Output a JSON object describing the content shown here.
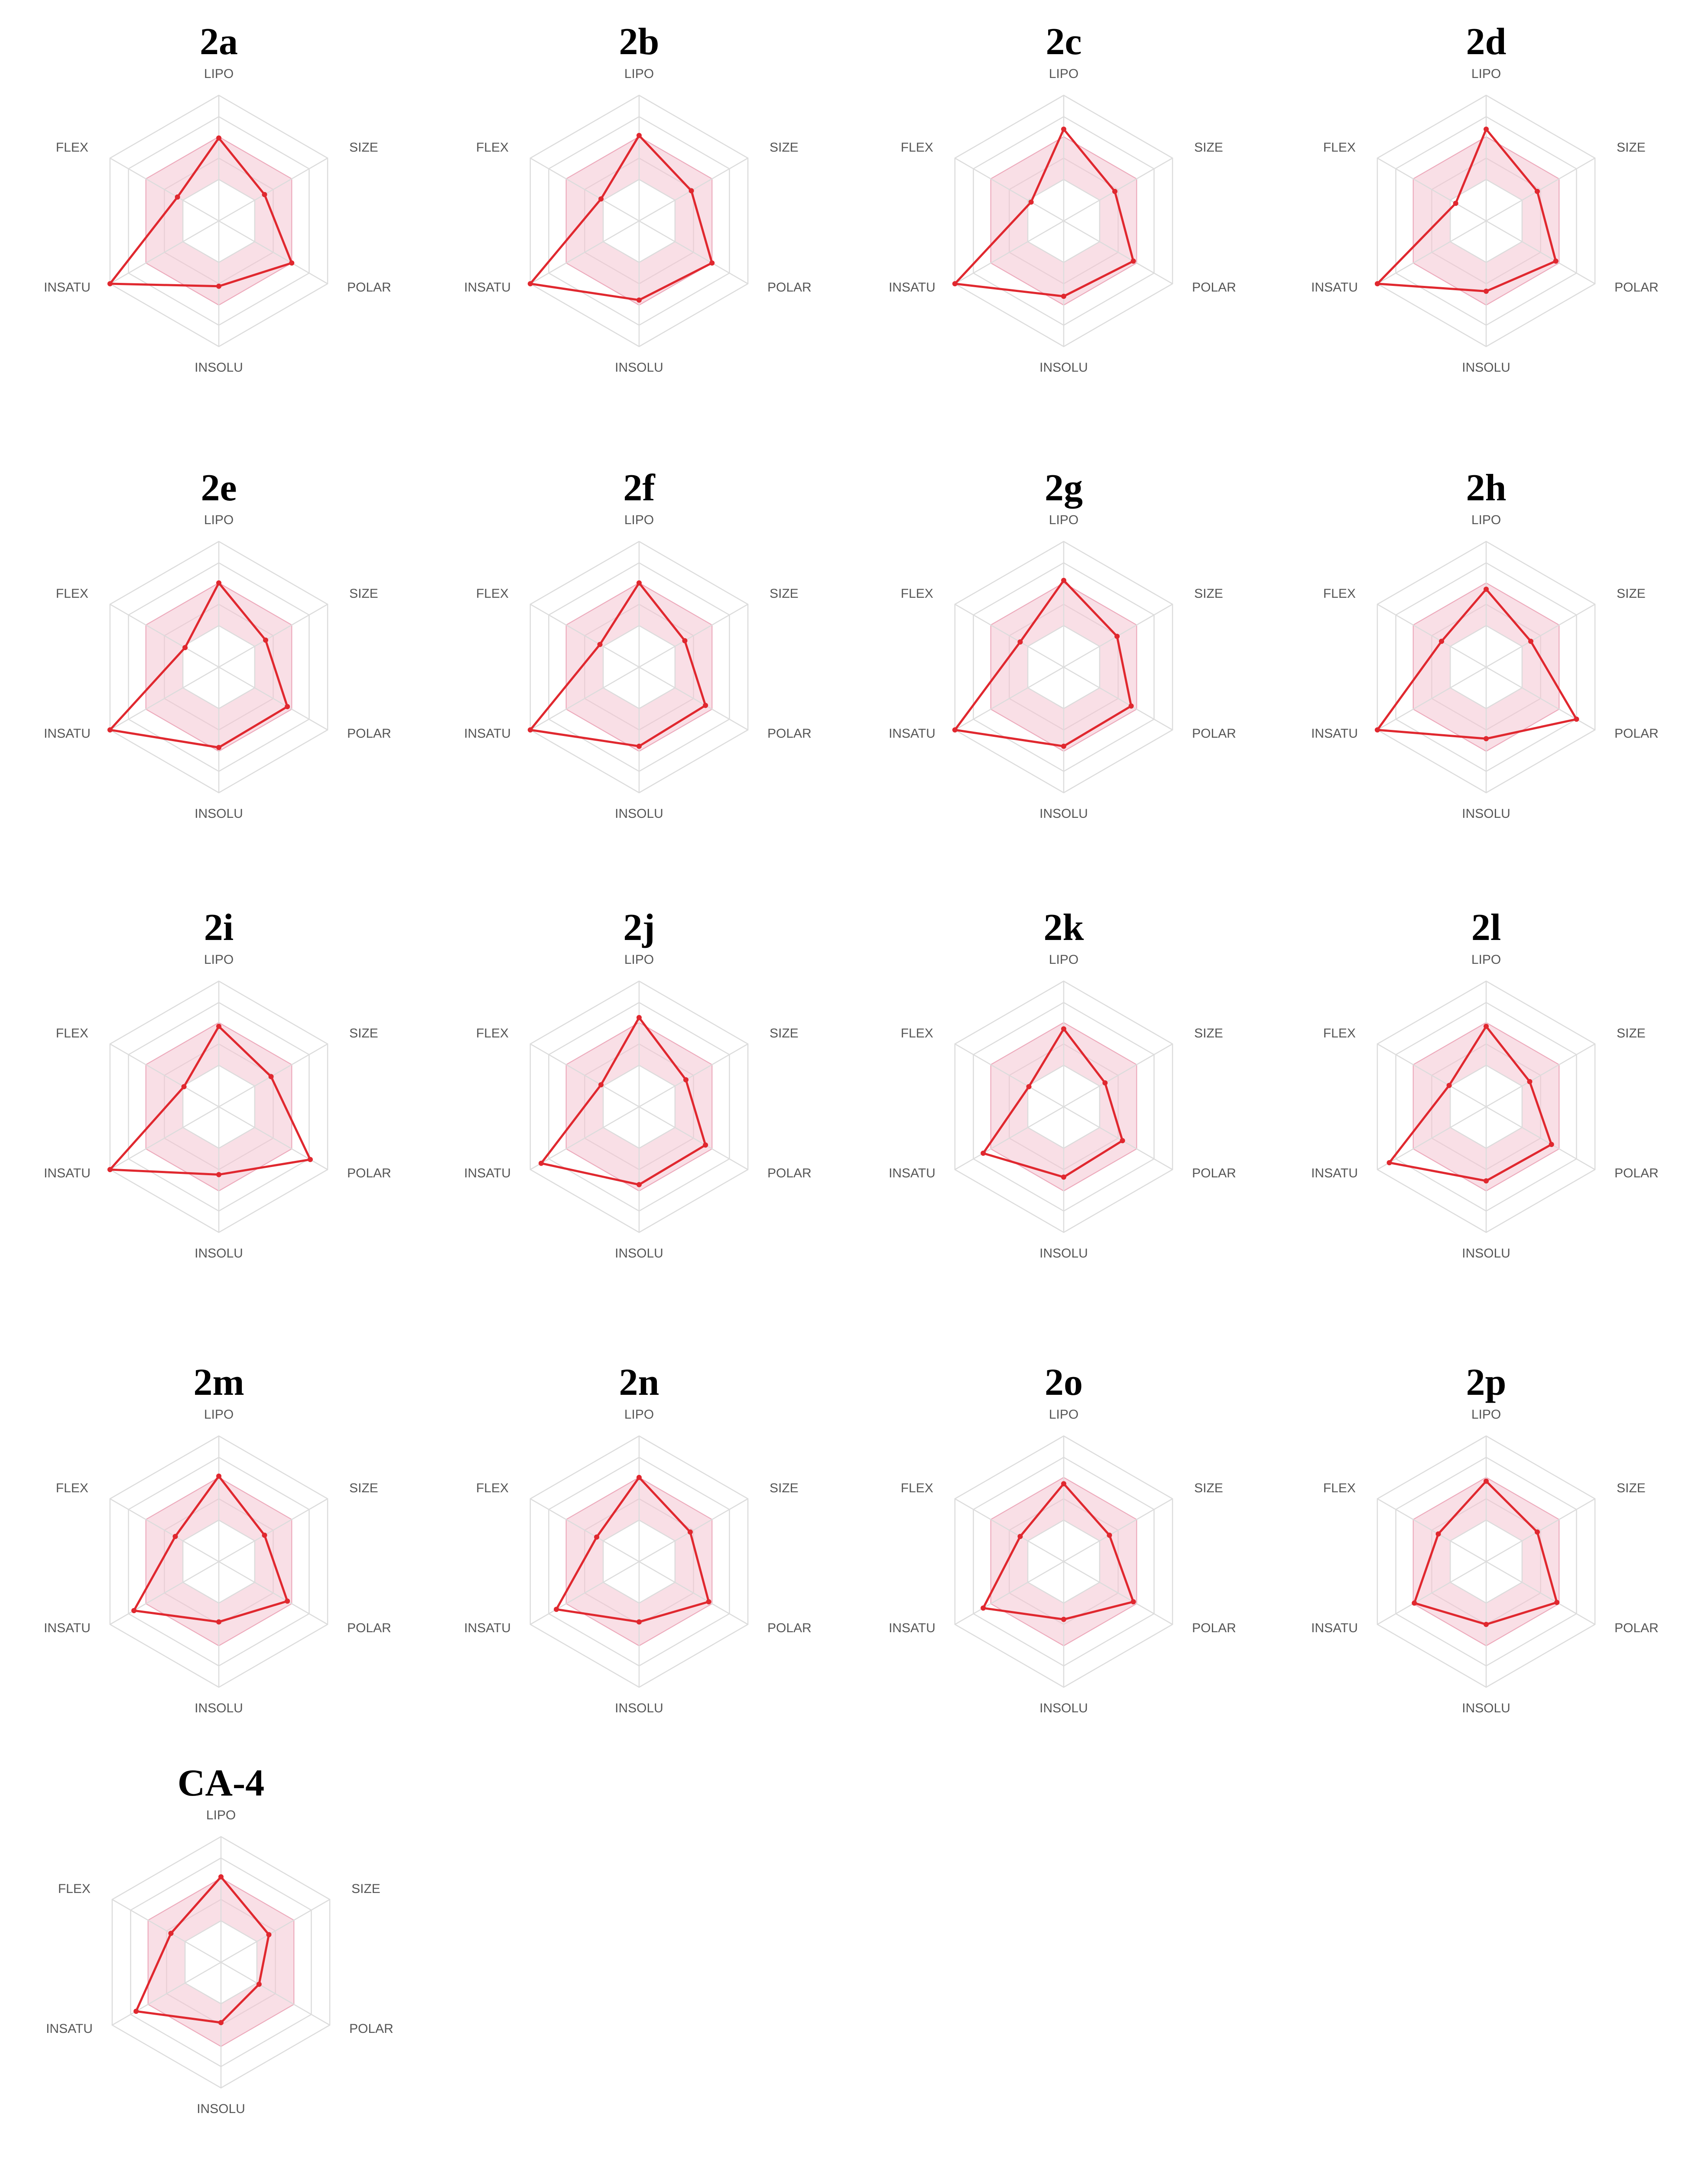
{
  "colors": {
    "series": "#e0282f",
    "band": "#f4c5d2",
    "grid": "#dcdcdc"
  },
  "axes": [
    "LIPO",
    "SIZE",
    "POLAR",
    "INSOLU",
    "INSATU",
    "FLEX"
  ],
  "chart_data": [
    {
      "type": "radar",
      "title": "2a",
      "axes": [
        "LIPO",
        "SIZE",
        "POLAR",
        "INSOLU",
        "INSATU",
        "FLEX"
      ],
      "values": [
        0.66,
        0.42,
        0.67,
        0.52,
        1.0,
        0.38
      ],
      "band": [
        0.33,
        0.67
      ],
      "range": [
        0,
        1
      ]
    },
    {
      "type": "radar",
      "title": "2b",
      "axes": [
        "LIPO",
        "SIZE",
        "POLAR",
        "INSOLU",
        "INSATU",
        "FLEX"
      ],
      "values": [
        0.68,
        0.48,
        0.67,
        0.63,
        1.0,
        0.35
      ],
      "band": [
        0.33,
        0.67
      ],
      "range": [
        0,
        1
      ]
    },
    {
      "type": "radar",
      "title": "2c",
      "axes": [
        "LIPO",
        "SIZE",
        "POLAR",
        "INSOLU",
        "INSATU",
        "FLEX"
      ],
      "values": [
        0.73,
        0.47,
        0.64,
        0.6,
        1.0,
        0.3
      ],
      "band": [
        0.33,
        0.67
      ],
      "range": [
        0,
        1
      ]
    },
    {
      "type": "radar",
      "title": "2d",
      "axes": [
        "LIPO",
        "SIZE",
        "POLAR",
        "INSOLU",
        "INSATU",
        "FLEX"
      ],
      "values": [
        0.73,
        0.47,
        0.64,
        0.56,
        1.0,
        0.28
      ],
      "band": [
        0.33,
        0.67
      ],
      "range": [
        0,
        1
      ]
    },
    {
      "type": "radar",
      "title": "2e",
      "axes": [
        "LIPO",
        "SIZE",
        "POLAR",
        "INSOLU",
        "INSATU",
        "FLEX"
      ],
      "values": [
        0.67,
        0.43,
        0.63,
        0.64,
        1.0,
        0.31
      ],
      "band": [
        0.33,
        0.67
      ],
      "range": [
        0,
        1
      ]
    },
    {
      "type": "radar",
      "title": "2f",
      "axes": [
        "LIPO",
        "SIZE",
        "POLAR",
        "INSOLU",
        "INSATU",
        "FLEX"
      ],
      "values": [
        0.67,
        0.42,
        0.61,
        0.63,
        1.0,
        0.36
      ],
      "band": [
        0.33,
        0.67
      ],
      "range": [
        0,
        1
      ]
    },
    {
      "type": "radar",
      "title": "2g",
      "axes": [
        "LIPO",
        "SIZE",
        "POLAR",
        "INSOLU",
        "INSATU",
        "FLEX"
      ],
      "values": [
        0.69,
        0.49,
        0.62,
        0.63,
        1.0,
        0.4
      ],
      "band": [
        0.33,
        0.67
      ],
      "range": [
        0,
        1
      ]
    },
    {
      "type": "radar",
      "title": "2h",
      "axes": [
        "LIPO",
        "SIZE",
        "POLAR",
        "INSOLU",
        "INSATU",
        "FLEX"
      ],
      "values": [
        0.62,
        0.41,
        0.83,
        0.57,
        1.0,
        0.41
      ],
      "band": [
        0.33,
        0.67
      ],
      "range": [
        0,
        1
      ]
    },
    {
      "type": "radar",
      "title": "2i",
      "axes": [
        "LIPO",
        "SIZE",
        "POLAR",
        "INSOLU",
        "INSATU",
        "FLEX"
      ],
      "values": [
        0.64,
        0.48,
        0.84,
        0.54,
        1.0,
        0.32
      ],
      "band": [
        0.33,
        0.67
      ],
      "range": [
        0,
        1
      ]
    },
    {
      "type": "radar",
      "title": "2j",
      "axes": [
        "LIPO",
        "SIZE",
        "POLAR",
        "INSOLU",
        "INSATU",
        "FLEX"
      ],
      "values": [
        0.71,
        0.43,
        0.61,
        0.62,
        0.9,
        0.35
      ],
      "band": [
        0.33,
        0.67
      ],
      "range": [
        0,
        1
      ]
    },
    {
      "type": "radar",
      "title": "2k",
      "axes": [
        "LIPO",
        "SIZE",
        "POLAR",
        "INSOLU",
        "INSATU",
        "FLEX"
      ],
      "values": [
        0.62,
        0.38,
        0.54,
        0.56,
        0.74,
        0.32
      ],
      "band": [
        0.33,
        0.67
      ],
      "range": [
        0,
        1
      ]
    },
    {
      "type": "radar",
      "title": "2l",
      "axes": [
        "LIPO",
        "SIZE",
        "POLAR",
        "INSOLU",
        "INSATU",
        "FLEX"
      ],
      "values": [
        0.64,
        0.4,
        0.6,
        0.59,
        0.89,
        0.34
      ],
      "band": [
        0.33,
        0.67
      ],
      "range": [
        0,
        1
      ]
    },
    {
      "type": "radar",
      "title": "2m",
      "axes": [
        "LIPO",
        "SIZE",
        "POLAR",
        "INSOLU",
        "INSATU",
        "FLEX"
      ],
      "values": [
        0.68,
        0.42,
        0.63,
        0.48,
        0.78,
        0.4
      ],
      "band": [
        0.33,
        0.67
      ],
      "range": [
        0,
        1
      ]
    },
    {
      "type": "radar",
      "title": "2n",
      "axes": [
        "LIPO",
        "SIZE",
        "POLAR",
        "INSOLU",
        "INSATU",
        "FLEX"
      ],
      "values": [
        0.67,
        0.47,
        0.64,
        0.48,
        0.76,
        0.39
      ],
      "band": [
        0.33,
        0.67
      ],
      "range": [
        0,
        1
      ]
    },
    {
      "type": "radar",
      "title": "2o",
      "axes": [
        "LIPO",
        "SIZE",
        "POLAR",
        "INSOLU",
        "INSATU",
        "FLEX"
      ],
      "values": [
        0.62,
        0.42,
        0.64,
        0.46,
        0.74,
        0.4
      ],
      "band": [
        0.33,
        0.67
      ],
      "range": [
        0,
        1
      ]
    },
    {
      "type": "radar",
      "title": "2p",
      "axes": [
        "LIPO",
        "SIZE",
        "POLAR",
        "INSOLU",
        "INSATU",
        "FLEX"
      ],
      "values": [
        0.64,
        0.47,
        0.65,
        0.5,
        0.66,
        0.44
      ],
      "band": [
        0.33,
        0.67
      ],
      "range": [
        0,
        1
      ]
    },
    {
      "type": "radar",
      "title": "CA-4",
      "axes": [
        "LIPO",
        "SIZE",
        "POLAR",
        "INSOLU",
        "INSATU",
        "FLEX"
      ],
      "values": [
        0.68,
        0.44,
        0.35,
        0.48,
        0.78,
        0.46
      ],
      "band": [
        0.33,
        0.67
      ],
      "range": [
        0,
        1
      ]
    }
  ]
}
